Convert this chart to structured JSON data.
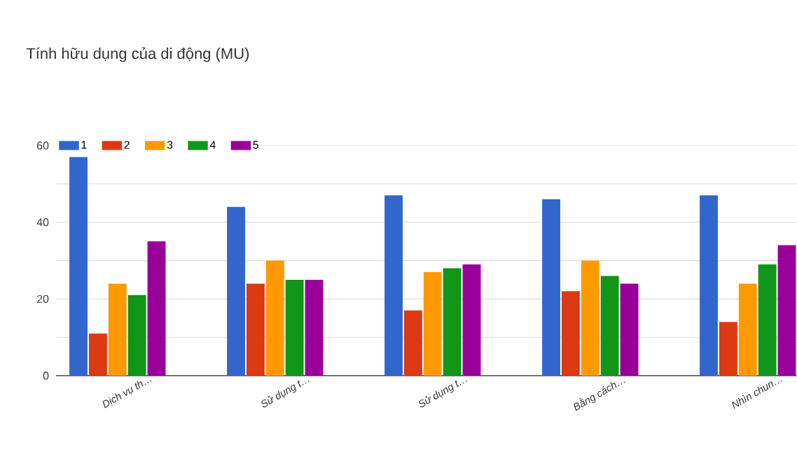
{
  "chart_data": {
    "type": "bar",
    "title": "Tính hữu dụng của di động (MU)",
    "categories": [
      "Dịch vụ th…",
      "Sử dụng t…",
      "Sử dụng t…",
      "Bằng cách…",
      "Nhìn chun…"
    ],
    "series": [
      {
        "name": "1",
        "color": "#3366cc",
        "values": [
          57,
          44,
          47,
          46,
          47
        ]
      },
      {
        "name": "2",
        "color": "#dc3912",
        "values": [
          11,
          24,
          17,
          22,
          14
        ]
      },
      {
        "name": "3",
        "color": "#ff9900",
        "values": [
          24,
          30,
          27,
          30,
          24
        ]
      },
      {
        "name": "4",
        "color": "#109618",
        "values": [
          21,
          25,
          28,
          26,
          29
        ]
      },
      {
        "name": "5",
        "color": "#990099",
        "values": [
          35,
          25,
          29,
          24,
          34
        ]
      }
    ],
    "ylim": [
      0,
      60
    ],
    "yticks": [
      0,
      {
        "value": 10,
        "label": null
      },
      20,
      {
        "value": 30,
        "label": null
      },
      40,
      {
        "value": 50,
        "label": null
      },
      60
    ],
    "grid": "y",
    "legend": "top left"
  }
}
